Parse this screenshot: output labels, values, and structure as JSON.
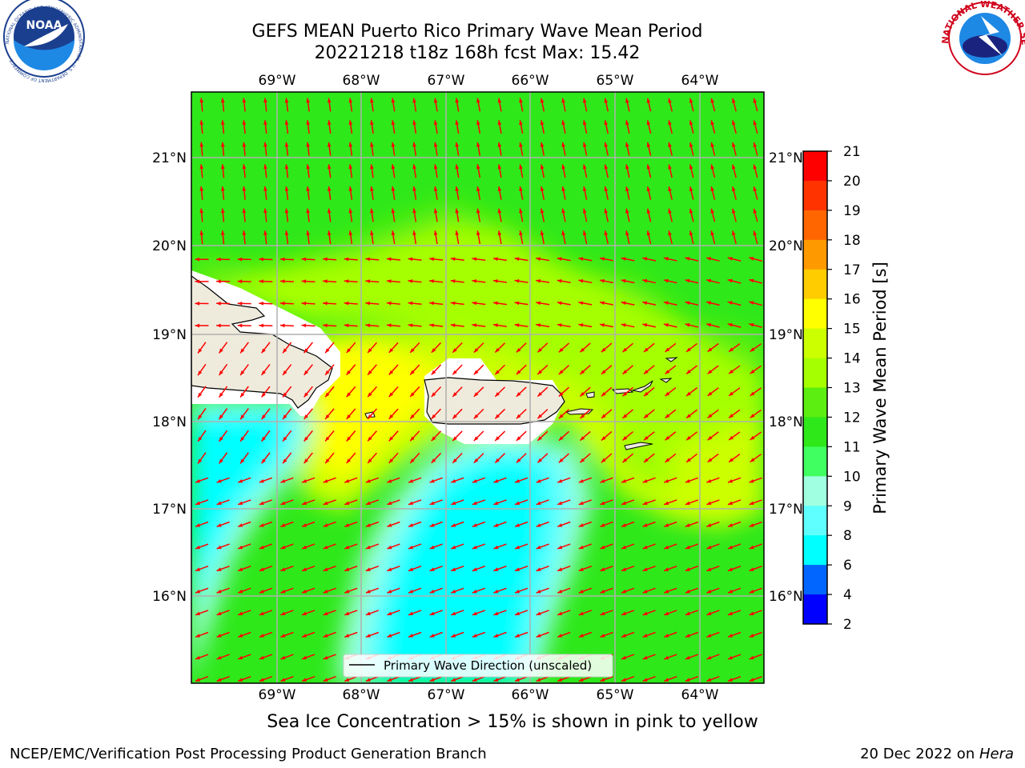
{
  "title": {
    "line1": "GEFS MEAN Puerto Rico Primary Wave Mean Period",
    "line2": "20221218 t18z 168h fcst   Max: 15.42"
  },
  "map": {
    "lon_labels": [
      "69°W",
      "68°W",
      "67°W",
      "66°W",
      "65°W",
      "64°W"
    ],
    "lat_labels": [
      "21°N",
      "20°N",
      "19°N",
      "18°N",
      "17°N",
      "16°N"
    ],
    "legend_label": "Primary Wave Direction (unscaled)",
    "colors": {
      "arrow": "#ff0000",
      "land": "#eeebdc",
      "gridline": "#b0b0b0"
    }
  },
  "colorbar": {
    "label": "Primary Wave Mean Period [s]",
    "ticks": [
      "2",
      "4",
      "6",
      "8",
      "9",
      "10",
      "11",
      "12",
      "13",
      "14",
      "15",
      "16",
      "17",
      "18",
      "19",
      "20",
      "21"
    ],
    "colors": [
      "#0000ff",
      "#0066ff",
      "#00ffff",
      "#5fffff",
      "#a0ffe0",
      "#40ff60",
      "#2ee81a",
      "#5cee10",
      "#a6ff00",
      "#ccff00",
      "#ffff00",
      "#ffcc00",
      "#ff9900",
      "#ff6600",
      "#ff3300",
      "#ff0000"
    ]
  },
  "logos": {
    "noaa": {
      "text": "NOAA",
      "ring_text": "NATIONAL OCEANIC AND ATMOSPHERIC ADMINISTRATION · U.S. DEPARTMENT OF COMMERCE"
    },
    "nws": {
      "ring_text": "NATIONAL WEATHER SERVICE"
    }
  },
  "notes": {
    "sea_ice": "Sea Ice Concentration > 15% is shown in pink to yellow"
  },
  "footer": {
    "left": "NCEP/EMC/Verification Post Processing Product Generation Branch",
    "date": "20 Dec 2022 on ",
    "host": "Hera"
  }
}
